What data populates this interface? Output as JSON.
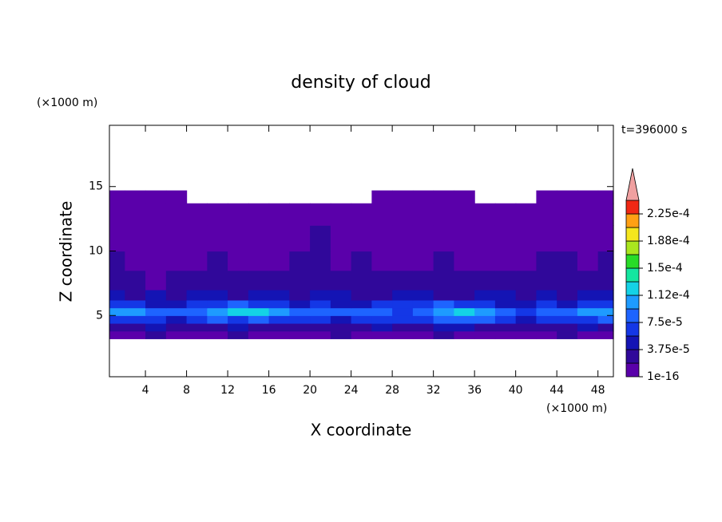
{
  "chart_data": {
    "type": "contour",
    "title": "density of cloud",
    "x_label": "X coordinate",
    "y_label": "Z coordinate",
    "x_unit": "(×1000 m)",
    "y_unit": "(×1000 m)",
    "annotation": "t=396000 s",
    "xlim": [
      0.5,
      49.5
    ],
    "ylim": [
      0.25,
      19.75
    ],
    "xticks": [
      4,
      8,
      12,
      16,
      20,
      24,
      28,
      32,
      36,
      40,
      44,
      48
    ],
    "yticks": [
      5,
      10,
      15
    ],
    "x_edges": [
      0.5,
      2,
      4,
      6,
      8,
      10,
      12,
      14,
      16,
      18,
      20,
      22,
      24,
      26,
      28,
      30,
      32,
      34,
      36,
      38,
      40,
      42,
      44,
      46,
      48,
      49.5
    ],
    "z_edges": [
      3.2,
      3.8,
      4.4,
      5,
      5.6,
      6.2,
      7,
      8.5,
      10,
      12,
      13.7,
      14.7
    ],
    "values": [
      [
        1e-05,
        1e-05,
        2e-05,
        1e-05,
        1e-05,
        1e-05,
        2e-05,
        1e-05,
        1e-05,
        1e-05,
        1e-05,
        2e-05,
        1e-05,
        1e-05,
        1e-05,
        1e-05,
        2e-05,
        1e-05,
        1e-05,
        1e-05,
        1e-05,
        1e-05,
        2e-05,
        1e-05,
        1e-05
      ],
      [
        3e-05,
        3e-05,
        4e-05,
        3e-05,
        3e-05,
        3e-05,
        4e-05,
        3e-05,
        3e-05,
        3e-05,
        3e-05,
        3e-05,
        3e-05,
        4e-05,
        3e-05,
        3e-05,
        4e-05,
        4e-05,
        3e-05,
        3e-05,
        3e-05,
        3e-05,
        3e-05,
        4e-05,
        3e-05
      ],
      [
        6e-05,
        7e-05,
        6e-05,
        5e-05,
        6e-05,
        8e-05,
        7e-05,
        8e-05,
        7e-05,
        6e-05,
        6e-05,
        5e-05,
        6e-05,
        7e-05,
        6e-05,
        6e-05,
        8e-05,
        9e-05,
        8e-05,
        6e-05,
        5e-05,
        7e-05,
        6e-05,
        7e-05,
        8e-05
      ],
      [
        0.000105,
        0.0001,
        9e-05,
        8e-05,
        9e-05,
        0.00011,
        0.00012,
        0.000115,
        0.0001,
        9e-05,
        8e-05,
        8e-05,
        9e-05,
        8e-05,
        7e-05,
        9e-05,
        0.00011,
        0.00012,
        0.00011,
        9e-05,
        7e-05,
        8e-05,
        9e-05,
        0.0001,
        0.00011
      ],
      [
        7e-05,
        6e-05,
        5e-05,
        5e-05,
        6e-05,
        7e-05,
        8e-05,
        7e-05,
        6e-05,
        5e-05,
        6e-05,
        5e-05,
        5e-05,
        6e-05,
        6e-05,
        7e-05,
        8e-05,
        7e-05,
        6e-05,
        5e-05,
        5e-05,
        6e-05,
        5e-05,
        6e-05,
        7e-05
      ],
      [
        4e-05,
        3e-05,
        4e-05,
        3e-05,
        4e-05,
        4e-05,
        3e-05,
        4e-05,
        4e-05,
        3e-05,
        4e-05,
        4e-05,
        3e-05,
        3e-05,
        4e-05,
        4e-05,
        3e-05,
        3e-05,
        4e-05,
        4e-05,
        3e-05,
        4e-05,
        3e-05,
        4e-05,
        4e-05
      ],
      [
        2.5e-05,
        2e-05,
        1.5e-05,
        2.5e-05,
        2.5e-05,
        2e-05,
        2.5e-05,
        2.5e-05,
        2e-05,
        2.5e-05,
        2.5e-05,
        2e-05,
        2.5e-05,
        2.5e-05,
        2e-05,
        2.5e-05,
        2.5e-05,
        2.5e-05,
        2e-05,
        2.5e-05,
        2e-05,
        2.5e-05,
        2.5e-05,
        2e-05,
        2.5e-05
      ],
      [
        2e-05,
        1.5e-05,
        1e-05,
        1e-05,
        1.5e-05,
        2e-05,
        1.5e-05,
        1e-05,
        1e-05,
        2e-05,
        2e-05,
        1.5e-05,
        2e-05,
        1.5e-05,
        1e-05,
        1e-05,
        2e-05,
        1.5e-05,
        1e-05,
        1e-05,
        1.5e-05,
        2e-05,
        2e-05,
        1.5e-05,
        2e-05
      ],
      [
        5e-06,
        5e-06,
        5e-06,
        5e-06,
        5e-06,
        5e-06,
        5e-06,
        5e-06,
        5e-06,
        5e-06,
        2e-05,
        5e-06,
        5e-06,
        5e-06,
        5e-06,
        5e-06,
        5e-06,
        5e-06,
        5e-06,
        5e-06,
        5e-06,
        5e-06,
        5e-06,
        5e-06,
        5e-06
      ],
      [
        1e-06,
        1e-06,
        1e-06,
        1e-06,
        1e-06,
        1e-06,
        1e-06,
        1e-06,
        1e-06,
        1e-06,
        1e-06,
        1e-06,
        1e-06,
        1e-06,
        1e-06,
        1e-06,
        1e-06,
        1e-06,
        1e-06,
        1e-06,
        1e-06,
        1e-06,
        1e-06,
        1e-06,
        1e-06
      ],
      [
        1e-06,
        1e-06,
        1e-06,
        1e-06,
        null,
        null,
        null,
        null,
        null,
        null,
        null,
        null,
        null,
        1e-06,
        1e-06,
        1e-06,
        1e-06,
        1e-06,
        null,
        null,
        null,
        1e-06,
        1e-06,
        1e-06,
        1e-06
      ]
    ],
    "levels": [
      1e-16,
      1.875e-05,
      3.75e-05,
      5.625e-05,
      7.5e-05,
      9.375e-05,
      0.0001125,
      0.00013125,
      0.00015,
      0.00016875,
      0.0001875,
      0.00020625,
      0.000225,
      0.00024375
    ],
    "colors": [
      "#5a00aa",
      "#30089a",
      "#1414b4",
      "#1437e6",
      "#1e64ff",
      "#1e9bff",
      "#14d2e6",
      "#14e6a0",
      "#28dc28",
      "#aae61e",
      "#f5e61e",
      "#ffa014",
      "#f02814"
    ],
    "over_color": "#f0a0a0",
    "colorbar_ticks": [
      {
        "value": 1e-16,
        "label": "1e-16"
      },
      {
        "value": 3.75e-05,
        "label": "3.75e-5"
      },
      {
        "value": 7.5e-05,
        "label": "7.5e-5"
      },
      {
        "value": 0.0001125,
        "label": "1.12e-4"
      },
      {
        "value": 0.00015,
        "label": "1.5e-4"
      },
      {
        "value": 0.0001875,
        "label": "1.88e-4"
      },
      {
        "value": 0.000225,
        "label": "2.25e-4"
      }
    ]
  }
}
